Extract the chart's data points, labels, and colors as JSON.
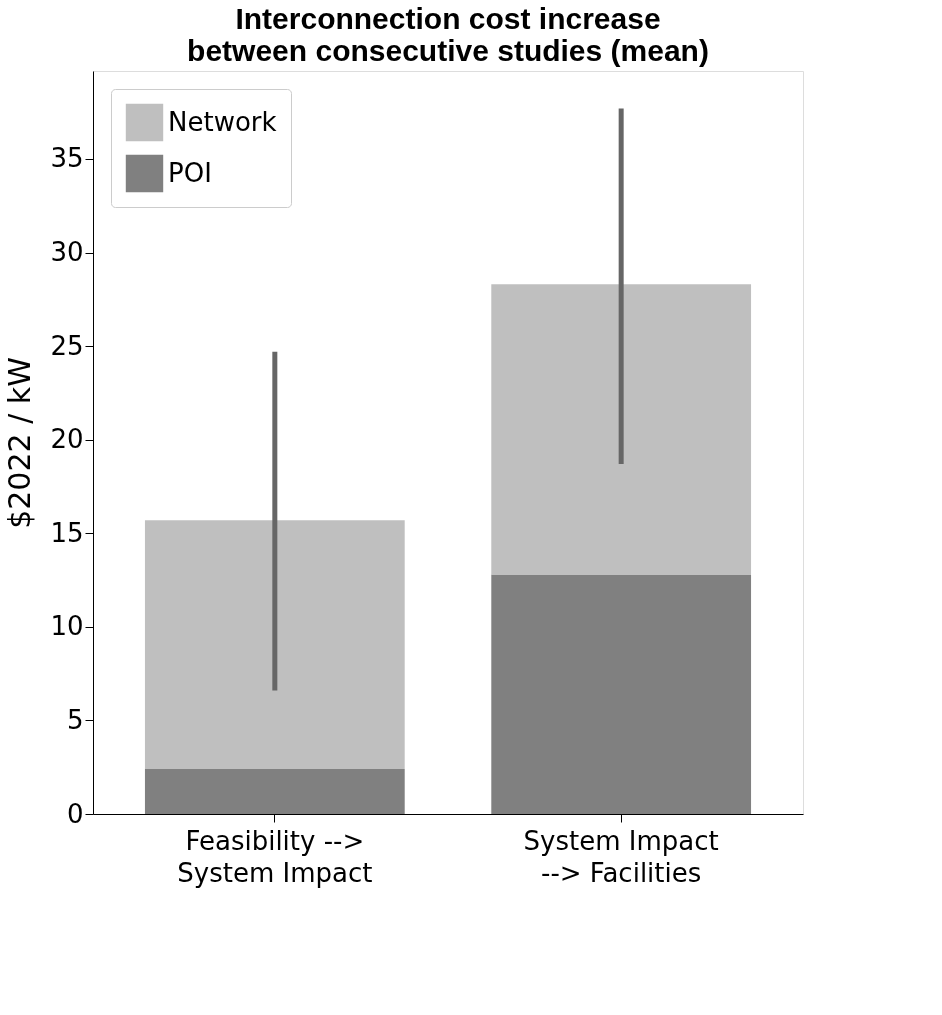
{
  "chart_data": {
    "type": "bar",
    "title": "Interconnection cost increase\nbetween consecutive studies (mean)",
    "ylabel": "$2022 / kW",
    "categories": [
      "Feasibility -->\nSystem Impact",
      "System Impact\n--> Facilities"
    ],
    "stacked": true,
    "series": [
      {
        "name": "POI",
        "color": "#808080",
        "values": [
          2.4,
          12.8
        ]
      },
      {
        "name": "Network",
        "color": "#bfbfbf",
        "values": [
          13.3,
          15.5
        ],
        "errors": [
          [
            6.6,
            24.7
          ],
          [
            18.7,
            37.7
          ]
        ]
      }
    ],
    "ylim": [
      0,
      39.7
    ],
    "yticks": [
      0,
      5,
      10,
      15,
      20,
      25,
      30,
      35
    ],
    "grid": false,
    "legend": "top left"
  }
}
